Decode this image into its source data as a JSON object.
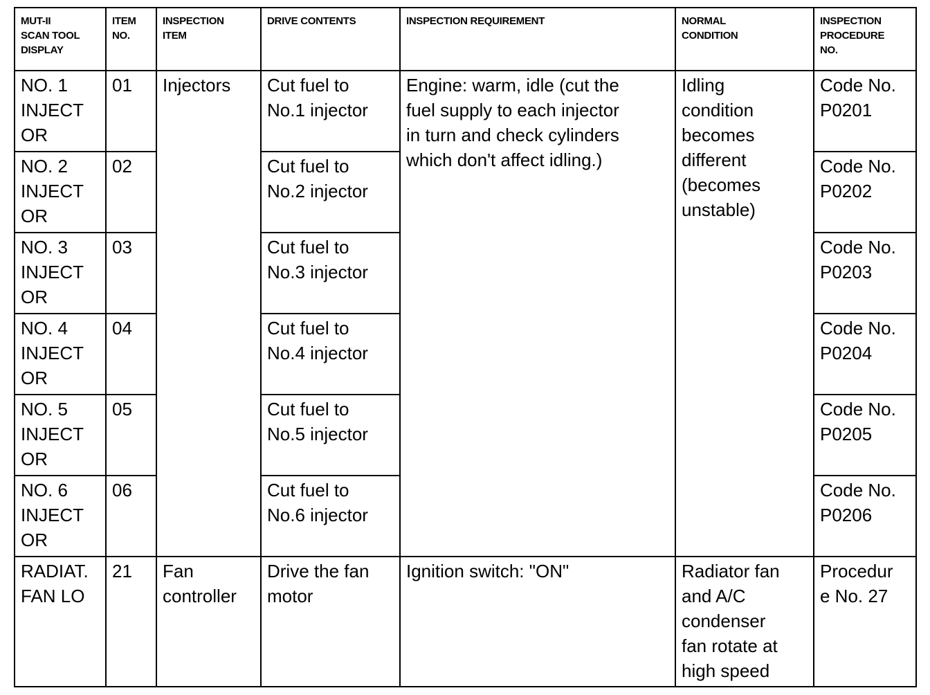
{
  "headers": [
    "MUT-II\nSCAN TOOL\nDISPLAY",
    "ITEM\nNO.",
    "INSPECTION\nITEM",
    "DRIVE CONTENTS",
    "INSPECTION REQUIREMENT",
    "NORMAL\nCONDITION",
    "INSPECTION\nPROCEDURE\nNO."
  ],
  "rows": [
    {
      "display": "NO. 1\nINJECT\nOR",
      "item_no": "01",
      "drive": "Cut fuel to\nNo.1 injector",
      "procedure": "Code No.\nP0201"
    },
    {
      "display": "NO. 2\nINJECT\nOR",
      "item_no": "02",
      "drive": "Cut fuel to\nNo.2 injector",
      "procedure": "Code No.\nP0202"
    },
    {
      "display": "NO. 3\nINJECT\nOR",
      "item_no": "03",
      "drive": "Cut fuel to\nNo.3 injector",
      "procedure": "Code No.\nP0203"
    },
    {
      "display": "NO. 4\nINJECT\nOR",
      "item_no": "04",
      "drive": "Cut fuel to\nNo.4 injector",
      "procedure": "Code No.\nP0204"
    },
    {
      "display": "NO. 5\nINJECT\nOR",
      "item_no": "05",
      "drive": "Cut fuel to\nNo.5 injector",
      "procedure": "Code No.\nP0205"
    },
    {
      "display": "NO. 6\nINJECT\nOR",
      "item_no": "06",
      "drive": "Cut fuel to\nNo.6 injector",
      "procedure": "Code No.\nP0206"
    }
  ],
  "injector_group": {
    "item": "Injectors",
    "requirement": "Engine: warm, idle (cut the\nfuel supply to each injector\nin turn and check cylinders\nwhich don't affect idling.)",
    "normal": "Idling\ncondition\nbecomes\ndifferent\n(becomes\nunstable)"
  },
  "fan_row": {
    "display": "RADIAT.\nFAN LO",
    "item_no": "21",
    "item": "Fan\ncontroller",
    "drive": "Drive the fan\nmotor",
    "requirement": "Ignition switch: \"ON\"",
    "normal": "Radiator fan\nand A/C\ncondenser\nfan rotate at\nhigh speed",
    "procedure": "Procedur\ne No. 27"
  }
}
